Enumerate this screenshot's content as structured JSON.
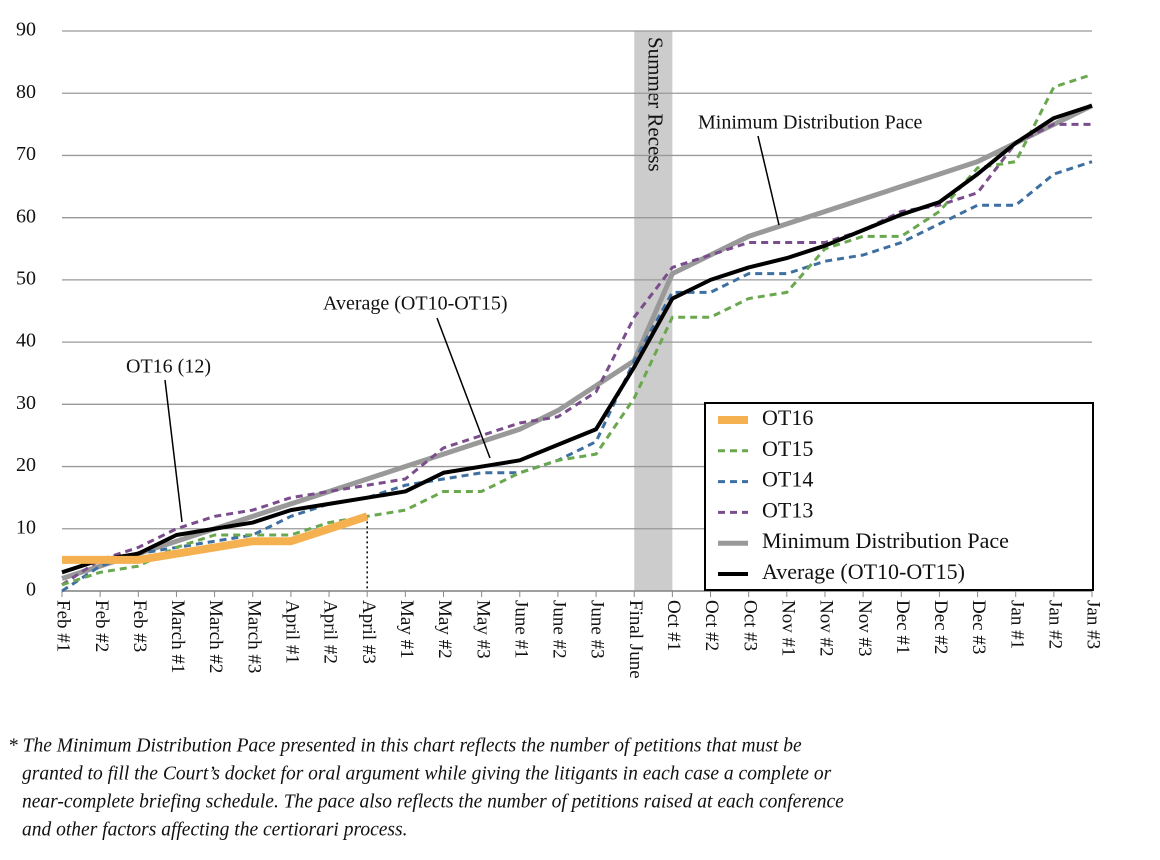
{
  "chart_data": {
    "type": "line",
    "categories": [
      "Feb #1",
      "Feb #2",
      "Feb #3",
      "March #1",
      "March #2",
      "March #3",
      "April #1",
      "April #2",
      "April #3",
      "May #1",
      "May #2",
      "May #3",
      "June #1",
      "June #2",
      "June #3",
      "Final June",
      "Oct #1",
      "Oct #2",
      "Oct #3",
      "Nov #1",
      "Nov #2",
      "Nov #3",
      "Dec #1",
      "Dec #2",
      "Dec #3",
      "Jan #1",
      "Jan #2",
      "Jan #3"
    ],
    "series": [
      {
        "name": "OT16",
        "color": "#f5b050",
        "linestyle": "solid",
        "values": [
          5,
          5,
          5,
          6,
          7,
          8,
          8,
          10,
          12,
          null,
          null,
          null,
          null,
          null,
          null,
          null,
          null,
          null,
          null,
          null,
          null,
          null,
          null,
          null,
          null,
          null,
          null,
          null
        ]
      },
      {
        "name": "OT15",
        "color": "#6aa84f",
        "linestyle": "dashed",
        "values": [
          1,
          3,
          4,
          7,
          9,
          9,
          9,
          11,
          12,
          13,
          16,
          16,
          19,
          21,
          22,
          31,
          44,
          44,
          47,
          48,
          55,
          57,
          57,
          61,
          68,
          69,
          81,
          83
        ]
      },
      {
        "name": "OT14",
        "color": "#3d6fa0",
        "linestyle": "dashed",
        "values": [
          0,
          4,
          6,
          7,
          8,
          9,
          12,
          14,
          15,
          17,
          18,
          19,
          19,
          21,
          24,
          37,
          48,
          48,
          51,
          51,
          53,
          54,
          56,
          59,
          62,
          62,
          67,
          69
        ]
      },
      {
        "name": "OT13",
        "color": "#7a4d8c",
        "linestyle": "dashed",
        "values": [
          1,
          5,
          7,
          10,
          12,
          13,
          15,
          16,
          17,
          18,
          23,
          25,
          27,
          28,
          32,
          44,
          52,
          54,
          56,
          56,
          56,
          58,
          61,
          62,
          64,
          72,
          75,
          75
        ]
      },
      {
        "name": "Minimum Distribution Pace",
        "color": "#999999",
        "linestyle": "solid",
        "values": [
          2,
          4,
          6,
          8,
          10,
          12,
          14,
          16,
          18,
          20,
          22,
          24,
          26,
          29,
          33,
          37,
          51,
          54,
          57,
          59,
          61,
          63,
          65,
          67,
          69,
          72,
          75,
          78
        ]
      },
      {
        "name": "Average (OT10-OT15)",
        "color": "#000000",
        "linestyle": "solid",
        "values": [
          3,
          5,
          6,
          9,
          10,
          11,
          13,
          14,
          15,
          16,
          19,
          20,
          21,
          23.5,
          26,
          36,
          47,
          50,
          52,
          53.5,
          55.5,
          58,
          60.5,
          62.5,
          67,
          72,
          76,
          78
        ]
      }
    ],
    "ylim": [
      0,
      90
    ],
    "yticks": [
      0,
      10,
      20,
      30,
      40,
      50,
      60,
      70,
      80,
      90
    ],
    "grid": true,
    "legend": "lower right",
    "annotations": {
      "recess": "Summer Recess",
      "pace": "Minimum Distribution Pace",
      "average": "Average (OT10-OT15)",
      "ot16": "OT16 (12)"
    },
    "footnote": [
      "* The Minimum Distribution Pace presented in this chart reflects the number of petitions that must be",
      "granted to fill the Court’s docket for oral argument while giving the litigants in each case a complete or",
      "near-complete briefing schedule. The pace also reflects the number of petitions raised at each conference",
      "and other factors affecting the certiorari process."
    ]
  }
}
